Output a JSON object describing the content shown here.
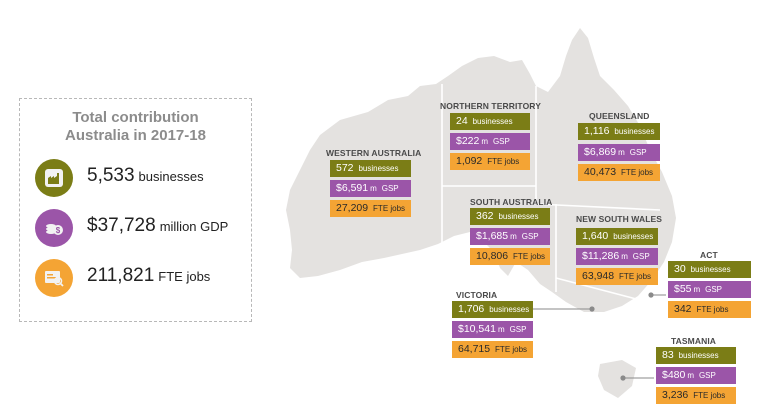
{
  "summary": {
    "title_line1": "Total contribution",
    "title_line2": "Australia in 2017-18",
    "businesses_value": "5,533",
    "businesses_unit": "businesses",
    "gdp_value": "$37,728",
    "gdp_unit": "million GDP",
    "jobs_value": "211,821",
    "jobs_unit": "FTE jobs",
    "colors": {
      "olive": "#7b7d16",
      "purple": "#9b55a8",
      "orange": "#f4a434"
    },
    "icons": [
      "factory-icon",
      "coins-icon",
      "job-search-icon"
    ]
  },
  "labels": {
    "businesses": "businesses",
    "gsp_m": "m",
    "gsp": "GSP",
    "jobs": "FTE jobs"
  },
  "states": {
    "wa": {
      "name": "WESTERN AUSTRALIA",
      "businesses": "572",
      "gsp": "$6,591",
      "jobs": "27,209"
    },
    "nt": {
      "name": "NORTHERN TERRITORY",
      "businesses": "24",
      "gsp": "$222",
      "jobs": "1,092"
    },
    "qld": {
      "name": "QUEENSLAND",
      "businesses": "1,116",
      "gsp": "$6,869",
      "jobs": "40,473"
    },
    "sa": {
      "name": "SOUTH AUSTRALIA",
      "businesses": "362",
      "gsp": "$1,685",
      "jobs": "10,806"
    },
    "nsw": {
      "name": "NEW SOUTH WALES",
      "businesses": "1,640",
      "gsp": "$11,286",
      "jobs": "63,948"
    },
    "act": {
      "name": "ACT",
      "businesses": "30",
      "gsp": "$55",
      "jobs": "342"
    },
    "vic": {
      "name": "VICTORIA",
      "businesses": "1,706",
      "gsp": "$10,541",
      "jobs": "64,715"
    },
    "tas": {
      "name": "TASMANIA",
      "businesses": "83",
      "gsp": "$480",
      "jobs": "3,236"
    }
  }
}
